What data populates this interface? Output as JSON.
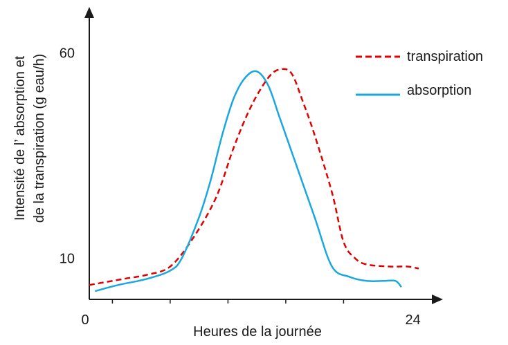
{
  "chart_data": {
    "type": "line",
    "xlabel": "Heures de la journée",
    "ylabel_line1": "Intensité de l’   absorption et",
    "ylabel_line2": "de la transpiration (g eau/h)",
    "x_tick_labels": [
      "0",
      "24"
    ],
    "y_tick_labels": [
      "10",
      "60"
    ],
    "xlim": [
      0,
      30
    ],
    "ylim": [
      0,
      70
    ],
    "x_minor_ticks": [
      2,
      7,
      12,
      17,
      22
    ],
    "legend_position": "top-right",
    "grid": false,
    "series": [
      {
        "name": "transpiration",
        "color": "#e00000",
        "dash": true,
        "points": [
          [
            0,
            3.5
          ],
          [
            3,
            5.0
          ],
          [
            5,
            6.0
          ],
          [
            7,
            8.0
          ],
          [
            9,
            15.0
          ],
          [
            11,
            25.0
          ],
          [
            12.5,
            37.0
          ],
          [
            14,
            47.0
          ],
          [
            15.5,
            54.0
          ],
          [
            16.5,
            56.0
          ],
          [
            17.5,
            55.0
          ],
          [
            18.5,
            48.0
          ],
          [
            19.5,
            40.0
          ],
          [
            21,
            26.0
          ],
          [
            22,
            14.0
          ],
          [
            23,
            10.0
          ],
          [
            24,
            8.5
          ],
          [
            26,
            8.0
          ],
          [
            27.5,
            8.0
          ],
          [
            28.5,
            7.5
          ]
        ]
      },
      {
        "name": "absorption",
        "color": "#1aa7e0",
        "dash": false,
        "points": [
          [
            0.5,
            2.0
          ],
          [
            2.5,
            3.5
          ],
          [
            5,
            5.0
          ],
          [
            7,
            7.0
          ],
          [
            8,
            10.0
          ],
          [
            9.5,
            20.0
          ],
          [
            10.5,
            29.0
          ],
          [
            11.5,
            40.0
          ],
          [
            12.5,
            49.0
          ],
          [
            13.5,
            54.0
          ],
          [
            14.5,
            55.5
          ],
          [
            15.5,
            52.0
          ],
          [
            16.5,
            44.0
          ],
          [
            18,
            32.0
          ],
          [
            19.5,
            20.0
          ],
          [
            21,
            8.0
          ],
          [
            22.5,
            5.5
          ],
          [
            24,
            4.5
          ],
          [
            25.5,
            4.5
          ],
          [
            26.5,
            4.5
          ],
          [
            27,
            3.0
          ]
        ]
      }
    ]
  }
}
